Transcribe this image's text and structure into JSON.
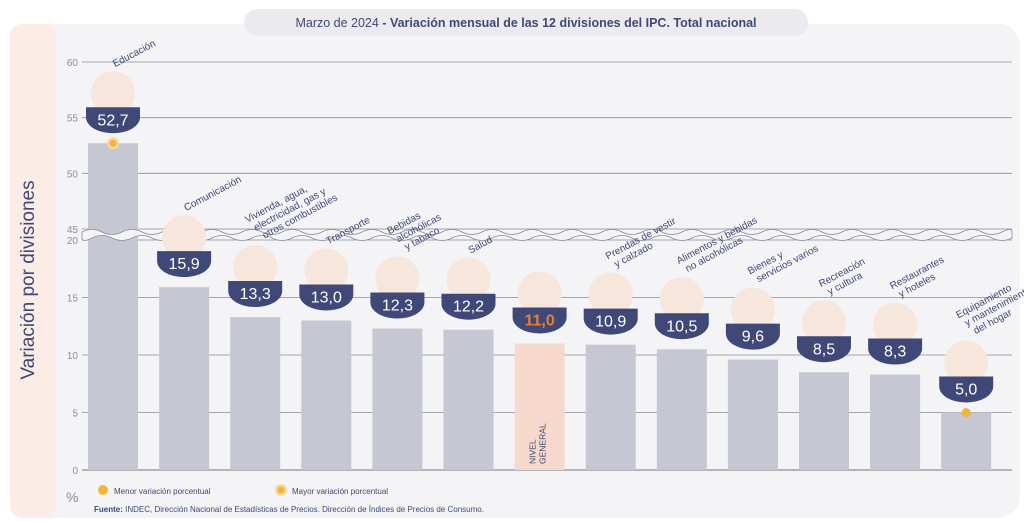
{
  "title_prefix": "Marzo de 2024",
  "title_main": " - Variación mensual de las 12 divisiones del IPC. Total nacional",
  "ylabel": "Variación por divisiones",
  "unit": "%",
  "legend": {
    "min_label": "Menor variación porcentual",
    "max_label": "Mayor variación porcentual"
  },
  "source_label": "Fuente:",
  "source_text": " INDEC, Dirección Nacional de Estadísticas de Precios. Dirección de Índices de Precios de Consumo.",
  "colors": {
    "bar": "#c5c8d3",
    "general_bar": "#f6d9cc",
    "badge": "#3f4876",
    "accent": "#e2803a",
    "grid": "#8a8d99",
    "panel": "#f4f3f6",
    "ylabel_band": "#fbece6",
    "marker": "#f2b43a"
  },
  "chart_data": {
    "type": "bar",
    "title": "Marzo de 2024 - Variación mensual de las 12 divisiones del IPC. Total nacional",
    "ylabel": "Variación por divisiones",
    "ylim": [
      0,
      60
    ],
    "axis_break": [
      20,
      45
    ],
    "yticks": [
      0,
      5,
      10,
      15,
      20,
      45,
      50,
      55,
      60
    ],
    "grid": true,
    "categories": [
      "Educación",
      "Comunicación",
      "Vivienda, agua, electricidad, gas y otros combustibles",
      "Transporte",
      "Bebidas alcohólicas y tabaco",
      "Salud",
      "Nivel general",
      "Prendas de vestir y calzado",
      "Alimentos y bebidas no alcohólicas",
      "Bienes y servicios varios",
      "Recreación y cultura",
      "Restaurantes y hoteles",
      "Equipamiento y mantenimiento del hogar"
    ],
    "values": [
      52.7,
      15.9,
      13.3,
      13.0,
      12.3,
      12.2,
      11.0,
      10.9,
      10.5,
      9.6,
      8.5,
      8.3,
      5.0
    ],
    "value_labels": [
      "52,7",
      "15,9",
      "13,3",
      "13,0",
      "12,3",
      "12,2",
      "11,0",
      "10,9",
      "10,5",
      "9,6",
      "8,5",
      "8,3",
      "5,0"
    ],
    "category_labels": [
      [
        "Educación"
      ],
      [
        "Comunicación"
      ],
      [
        "Vivienda, agua,",
        "electricidad, gas y",
        "otros combustibles"
      ],
      [
        "Transporte"
      ],
      [
        "Bebidas",
        "alcohólicas",
        "y tabaco"
      ],
      [
        "Salud"
      ],
      [
        "NIVEL",
        "GENERAL"
      ],
      [
        "Prendas de vestir",
        "y calzado"
      ],
      [
        "Alimentos y bebidas",
        "no alcohólicas"
      ],
      [
        "Bienes y",
        "servicios varios"
      ],
      [
        "Recreación",
        "y cultura"
      ],
      [
        "Restaurantes",
        "y hoteles"
      ],
      [
        "Equipamiento",
        "y mantenimiento",
        "del hogar"
      ]
    ],
    "highlight_index": 6,
    "max_index": 0,
    "min_index": 12
  }
}
